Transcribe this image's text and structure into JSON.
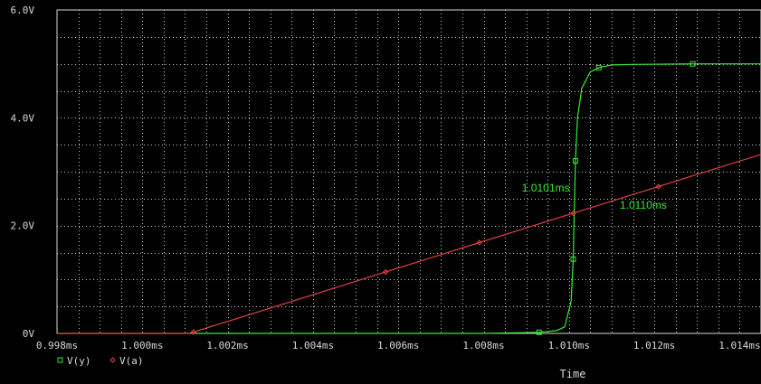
{
  "chart_data": {
    "type": "line",
    "xlabel": "Time",
    "ylabel": "",
    "xlim": [
      0.998,
      1.0145
    ],
    "ylim": [
      0,
      6.0
    ],
    "grid": true,
    "x_ticks": [
      0.998,
      1.0,
      1.002,
      1.004,
      1.006,
      1.008,
      1.01,
      1.012,
      1.014
    ],
    "x_tick_labels": [
      "0.998ms",
      "1.000ms",
      "1.002ms",
      "1.004ms",
      "1.006ms",
      "1.008ms",
      "1.010ms",
      "1.012ms",
      "1.014ms"
    ],
    "y_ticks": [
      0,
      2.0,
      4.0,
      6.0
    ],
    "y_tick_labels": [
      "0V",
      "2.0V",
      "4.0V",
      "6.0V"
    ],
    "series": [
      {
        "name": "V(y)",
        "color": "#33ee33",
        "marker": "square",
        "x": [
          0.998,
          1.008,
          1.0093,
          1.0097,
          1.0099,
          1.01005,
          1.0101,
          1.01015,
          1.0102,
          1.0103,
          1.0105,
          1.0107,
          1.011,
          1.0115,
          1.0129,
          1.0145
        ],
        "y": [
          0,
          0,
          0.02,
          0.05,
          0.12,
          0.6,
          1.38,
          3.2,
          4.0,
          4.55,
          4.85,
          4.93,
          4.98,
          4.99,
          5.0,
          5.0
        ],
        "markers_x": [
          1.0093,
          1.0101,
          1.01015,
          1.0107,
          1.0129
        ]
      },
      {
        "name": "V(a)",
        "color": "#e04040",
        "marker": "diamond",
        "x": [
          0.998,
          1.0011,
          1.0145
        ],
        "y": [
          0,
          0,
          3.32
        ],
        "markers_x": [
          1.0012,
          1.0057,
          1.0079,
          1.0101,
          1.0121
        ]
      }
    ],
    "annotations": [
      {
        "text": "1.0101ms",
        "x": 1.0101,
        "y": 2.28
      },
      {
        "text": "1.0110ms",
        "x": 1.011,
        "y": 2.28
      }
    ]
  }
}
